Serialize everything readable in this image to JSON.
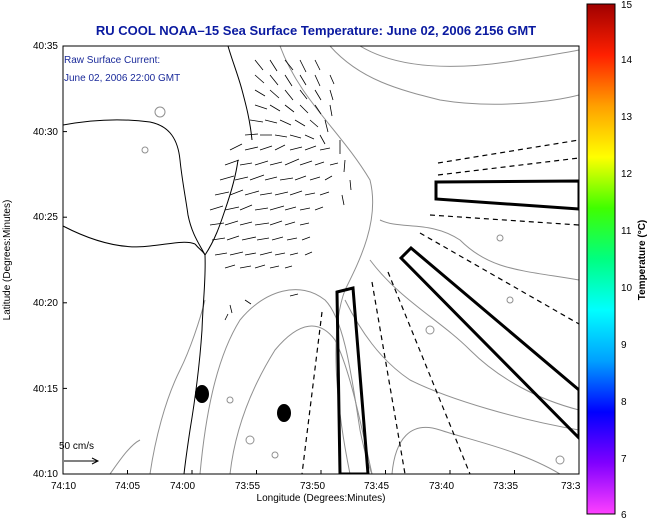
{
  "title": "RU COOL  NOAA–15  Sea Surface Temperature:  June 02, 2006 2156 GMT",
  "annotation": {
    "line1": "Raw Surface Current:",
    "line2": "June 02, 2006 22:00 GMT"
  },
  "scale": {
    "label": "50 cm/s"
  },
  "x_axis": {
    "label": "Longitude (Degrees:Minutes)",
    "ticks": [
      "74:10",
      "74:05",
      "74:00",
      "73:55",
      "73:50",
      "73:45",
      "73:40",
      "73:35",
      "73:3"
    ]
  },
  "y_axis": {
    "label": "Latitude (Degrees:Minutes)",
    "ticks": [
      "40:35",
      "40:30",
      "40:25",
      "40:20",
      "40:15",
      "40:10"
    ]
  },
  "colorbar": {
    "label": "Temperature (°C)",
    "ticks": [
      "15",
      "14",
      "13",
      "12",
      "11",
      "10",
      "9",
      "8",
      "7",
      "6"
    ],
    "colors": [
      "#ff40ff",
      "#8000ff",
      "#0000ff",
      "#00a0ff",
      "#00ffff",
      "#00ff80",
      "#40ff00",
      "#ffff00",
      "#ffa000",
      "#ff2000",
      "#a00000"
    ]
  }
}
